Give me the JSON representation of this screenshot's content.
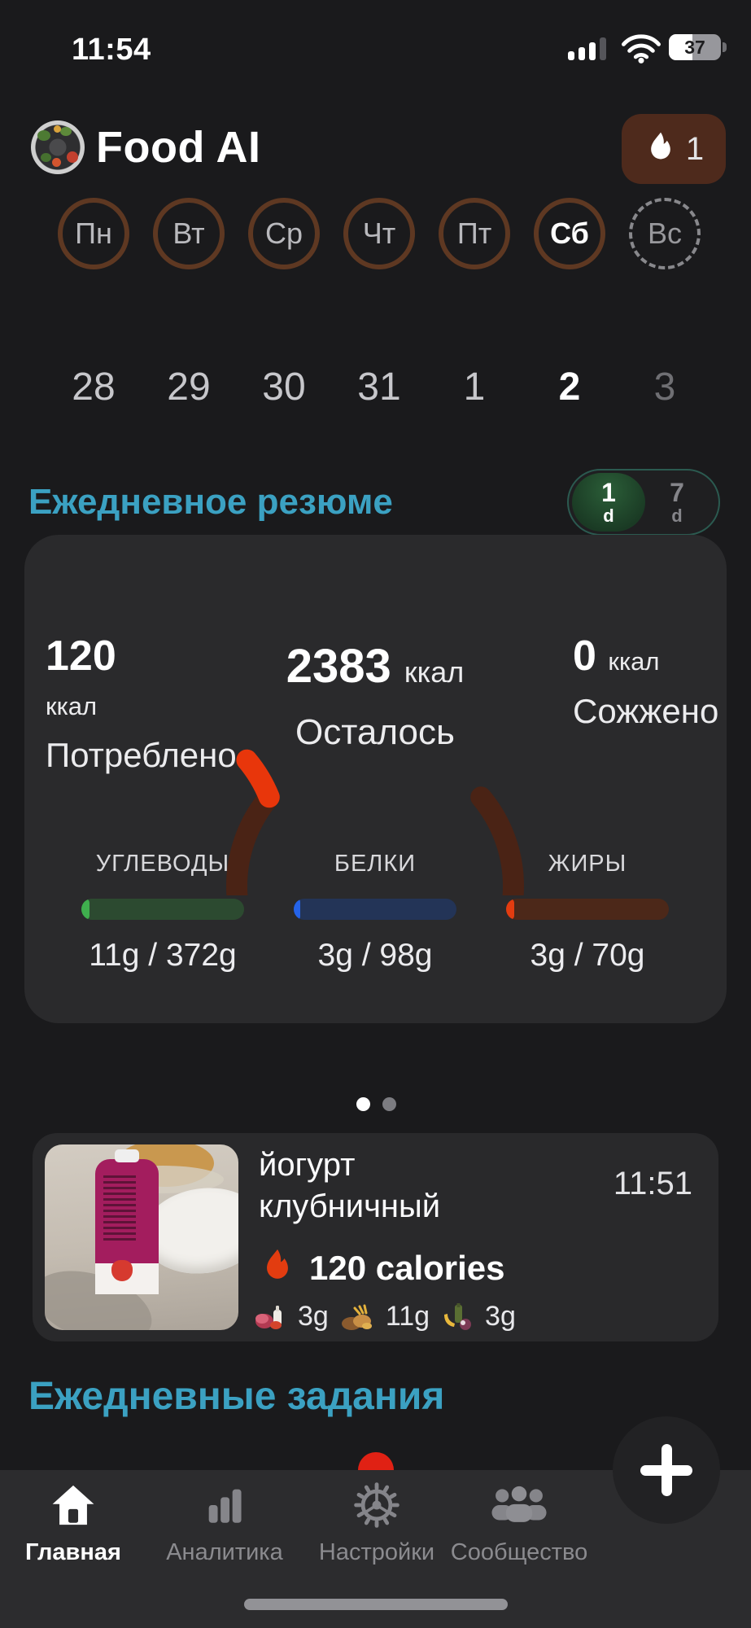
{
  "colors": {
    "accent_teal": "#3ba1c2",
    "brand_brown": "#5e3822",
    "flame_red": "#e23c10",
    "gauge_track_brown": "#4a2315",
    "carbs_green": "#3fae4e",
    "protein_blue": "#2563e8",
    "fats_red": "#e23c10",
    "toggle_green": "#2b5e38"
  },
  "status_bar": {
    "time": "11:54",
    "battery": "37"
  },
  "header": {
    "app_title": "Food AI",
    "streak": "1"
  },
  "week": {
    "days": [
      {
        "label": "Пн",
        "date": "28"
      },
      {
        "label": "Вт",
        "date": "29"
      },
      {
        "label": "Ср",
        "date": "30"
      },
      {
        "label": "Чт",
        "date": "31"
      },
      {
        "label": "Пт",
        "date": "1"
      },
      {
        "label": "Сб",
        "date": "2"
      },
      {
        "label": "Вс",
        "date": "3"
      }
    ]
  },
  "summary": {
    "heading": "Ежедневное резюме",
    "toggle": {
      "day_value": "1",
      "day_unit": "d",
      "week_value": "7",
      "week_unit": "d"
    },
    "consumed": {
      "value": "120",
      "unit": "ккал",
      "label": "Потреблено"
    },
    "remaining": {
      "value": "2383",
      "unit": "ккал",
      "label": "Осталось"
    },
    "burned": {
      "value": "0",
      "unit": "ккал",
      "label": "Сожжено"
    },
    "macros": [
      {
        "label": "УГЛЕВОДЫ",
        "value": "11g / 372g",
        "pct": 5
      },
      {
        "label": "БЕЛКИ",
        "value": "3g / 98g",
        "pct": 4
      },
      {
        "label": "ЖИРЫ",
        "value": "3g / 70g",
        "pct": 5
      }
    ]
  },
  "meal": {
    "title": "йогурт клубничный",
    "time": "11:51",
    "calories": "120 calories",
    "protein": "3g",
    "carbs": "11g",
    "fats": "3g"
  },
  "tasks": {
    "heading": "Ежедневные задания"
  },
  "nav": {
    "home": "Главная",
    "analytics": "Аналитика",
    "settings": "Настройки",
    "community": "Сообщество"
  }
}
